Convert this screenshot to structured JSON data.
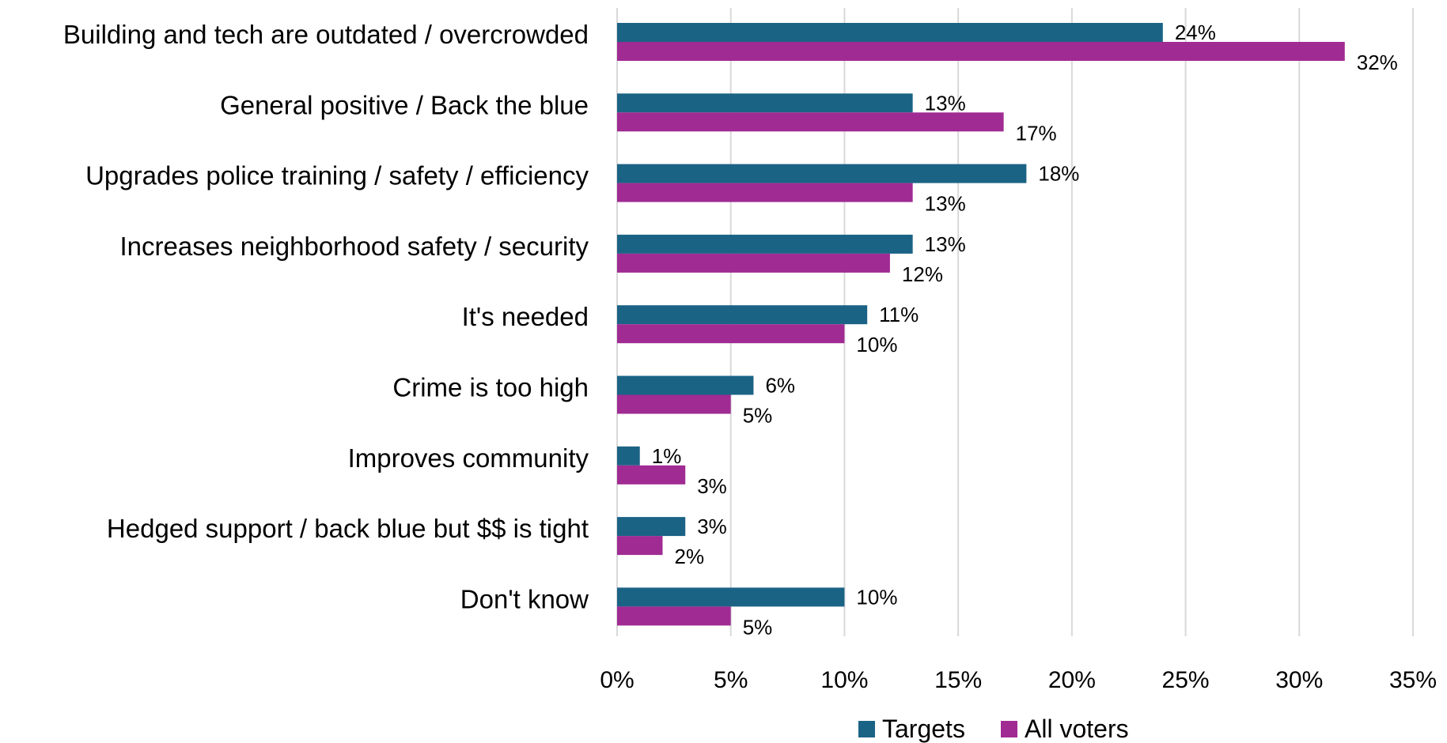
{
  "chart_data": {
    "type": "bar",
    "orientation": "horizontal",
    "categories": [
      "Building and tech are outdated / overcrowded",
      "General positive / Back the blue",
      "Upgrades police training / safety / efficiency",
      "Increases neighborhood safety / security",
      "It's needed",
      "Crime is too high",
      "Improves community",
      "Hedged support / back blue but $$ is tight",
      "Don't know"
    ],
    "series": [
      {
        "name": "Targets",
        "color": "#1b6385",
        "values": [
          24,
          13,
          18,
          13,
          11,
          6,
          1,
          3,
          10
        ],
        "labels": [
          "24%",
          "13%",
          "18%",
          "13%",
          "11%",
          "6%",
          "1%",
          "3%",
          "10%"
        ]
      },
      {
        "name": "All voters",
        "color": "#a02b93",
        "values": [
          32,
          17,
          13,
          12,
          10,
          5,
          3,
          2,
          5
        ],
        "labels": [
          "32%",
          "17%",
          "13%",
          "12%",
          "10%",
          "5%",
          "3%",
          "2%",
          "5%"
        ]
      }
    ],
    "xlim": [
      0,
      35
    ],
    "xticks": [
      0,
      5,
      10,
      15,
      20,
      25,
      30,
      35
    ],
    "xtick_labels": [
      "0%",
      "5%",
      "10%",
      "15%",
      "20%",
      "25%",
      "30%",
      "35%"
    ],
    "grid": "vertical",
    "legend_position": "bottom-center",
    "title": "",
    "xlabel": "",
    "ylabel": ""
  }
}
